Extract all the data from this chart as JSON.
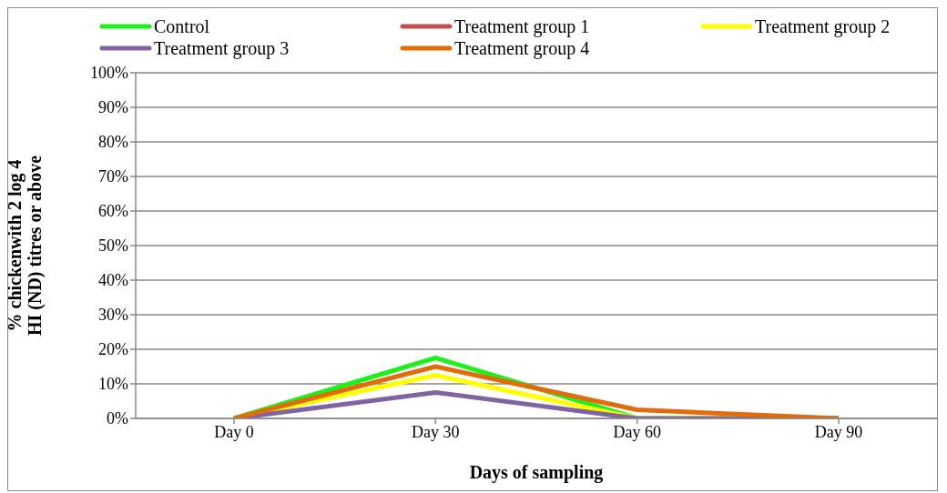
{
  "chart_data": {
    "type": "line",
    "xlabel": "Days of sampling",
    "ylabel": "% chickenwith 2 log 4\nHI (ND) titres or above",
    "categories": [
      "Day 0",
      "Day 30",
      "Day 60",
      "Day 90"
    ],
    "series": [
      {
        "name": "Control",
        "color": "#1ef01e",
        "values": [
          0,
          17.5,
          0,
          0
        ]
      },
      {
        "name": "Treatment group 1",
        "color": "#c0504d",
        "values": [
          null,
          null,
          null,
          null
        ]
      },
      {
        "name": "Treatment group 2",
        "color": "#ffff00",
        "values": [
          0,
          12.5,
          0,
          0
        ]
      },
      {
        "name": "Treatment group 3",
        "color": "#8064a2",
        "values": [
          0,
          7.5,
          0,
          0
        ]
      },
      {
        "name": "Treatment group 4",
        "color": "#e36c0a",
        "values": [
          0,
          15,
          2.5,
          0
        ]
      }
    ],
    "ylim": [
      0,
      100
    ],
    "yticks": [
      {
        "value": 0,
        "label": "0%"
      },
      {
        "value": 10,
        "label": "10%"
      },
      {
        "value": 20,
        "label": "20%"
      },
      {
        "value": 30,
        "label": "30%"
      },
      {
        "value": 40,
        "label": "40%"
      },
      {
        "value": 50,
        "label": "50%"
      },
      {
        "value": 60,
        "label": "60%"
      },
      {
        "value": 70,
        "label": "70%"
      },
      {
        "value": 80,
        "label": "80%"
      },
      {
        "value": 90,
        "label": "90%"
      },
      {
        "value": 100,
        "label": "100%"
      }
    ],
    "grid": "y",
    "legend": "top",
    "marker": "none",
    "line_style": "solid"
  }
}
